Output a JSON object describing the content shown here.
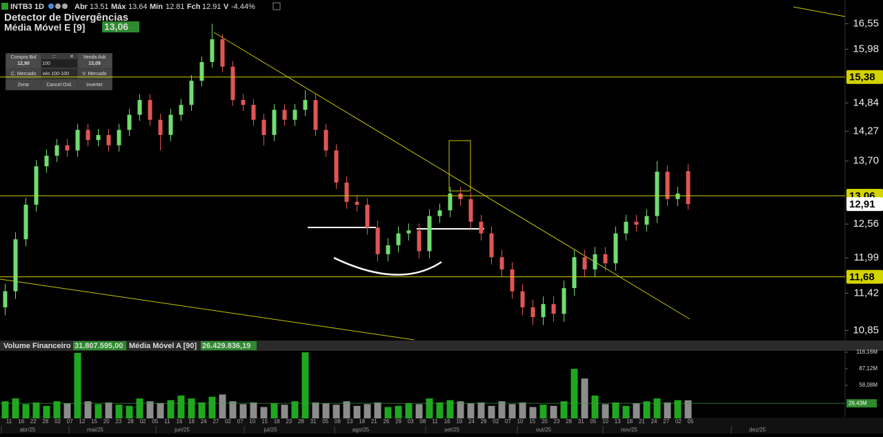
{
  "header": {
    "symbol": "INTB3 1D",
    "open_label": "Abr",
    "high_label": "Máx",
    "low_label": "Mín",
    "close_label": "Fch",
    "change_label": "V",
    "change": "-4.44%",
    "indicator": "Detector de Divergências",
    "ma_name": "Média Móvel E [9]",
    "ma_value": "13,06"
  },
  "order_panel": {
    "bid_label": "Compra Bid",
    "bid": "12,90",
    "quantity": "100",
    "handle": ":::",
    "ask_label": "Venda Ask",
    "ask": "13,09",
    "buy_market": "C. Mercado",
    "account": "win.100-100",
    "sell_market": "V. Mercado",
    "flatten": "Zerar",
    "cancel": "Cancel Ord.",
    "reverse": "Inverter"
  },
  "volume_header": {
    "name": "Volume Financeiro",
    "value": "31.807.595,00",
    "ma_name": "Média Móvel A [90]",
    "ma_value": "26.429.836,19"
  },
  "chart_data": [
    {
      "type": "candlestick",
      "log_scale": true,
      "up_color": "#6fdc6f",
      "down_color": "#e05555",
      "line_color": "#d4d400",
      "open": [
        11.2,
        11.45,
        12.3,
        12.9,
        13.6,
        13.8,
        14.0,
        13.9,
        14.3,
        14.1,
        14.2,
        14.0,
        14.3,
        14.6,
        14.9,
        14.5,
        14.2,
        14.6,
        14.8,
        15.3,
        15.7,
        16.2,
        15.6,
        14.9,
        14.8,
        14.5,
        14.2,
        14.7,
        14.5,
        14.7,
        14.9,
        14.3,
        13.9,
        13.3,
        12.95,
        12.9,
        12.5,
        12.05,
        12.2,
        12.4,
        12.45,
        12.1,
        12.7,
        12.8,
        13.1,
        13.0,
        12.6,
        12.4,
        12.0,
        11.8,
        11.45,
        11.2,
        11.05,
        11.25,
        11.1,
        11.5,
        12.0,
        11.8,
        12.05,
        11.9,
        12.4,
        12.6,
        12.55,
        12.7,
        13.5,
        13.0,
        13.51
      ],
      "high": [
        11.57,
        12.42,
        13.02,
        13.72,
        13.92,
        14.12,
        14.12,
        14.42,
        14.42,
        14.32,
        14.32,
        14.42,
        14.72,
        15.02,
        15.02,
        14.62,
        14.72,
        14.92,
        15.42,
        15.82,
        16.55,
        16.32,
        15.72,
        15.02,
        14.92,
        14.62,
        14.82,
        14.82,
        14.82,
        15.1,
        15.02,
        14.42,
        14.02,
        13.42,
        13.07,
        13.02,
        12.62,
        12.32,
        12.52,
        12.57,
        12.57,
        12.82,
        12.92,
        13.22,
        13.22,
        13.12,
        12.72,
        12.52,
        12.12,
        11.92,
        11.57,
        11.32,
        11.37,
        11.37,
        11.62,
        12.12,
        12.12,
        12.17,
        12.17,
        12.52,
        12.72,
        12.72,
        12.82,
        13.7,
        13.62,
        13.22,
        13.64
      ],
      "low": [
        11.08,
        11.33,
        12.18,
        12.78,
        13.48,
        13.68,
        13.78,
        13.78,
        13.98,
        13.98,
        13.88,
        13.88,
        14.18,
        14.48,
        14.38,
        13.9,
        14.08,
        14.48,
        14.68,
        15.18,
        15.58,
        15.48,
        14.78,
        14.68,
        14.38,
        14.0,
        14.08,
        14.38,
        14.38,
        14.58,
        14.18,
        13.78,
        13.18,
        12.83,
        12.78,
        12.38,
        11.93,
        11.93,
        12.08,
        12.28,
        11.98,
        11.98,
        12.58,
        12.68,
        12.88,
        12.48,
        12.28,
        11.88,
        11.68,
        11.33,
        11.08,
        10.93,
        10.93,
        10.98,
        10.98,
        11.38,
        11.68,
        11.68,
        11.78,
        11.78,
        12.28,
        12.43,
        12.43,
        12.58,
        12.88,
        12.88,
        12.81
      ],
      "close": [
        11.45,
        12.3,
        12.9,
        13.6,
        13.8,
        14.0,
        13.9,
        14.3,
        14.1,
        14.2,
        14.0,
        14.3,
        14.6,
        14.9,
        14.5,
        14.2,
        14.6,
        14.8,
        15.3,
        15.7,
        16.2,
        15.6,
        14.9,
        14.8,
        14.5,
        14.2,
        14.7,
        14.5,
        14.7,
        14.9,
        14.3,
        13.9,
        13.3,
        12.95,
        12.9,
        12.5,
        12.05,
        12.2,
        12.4,
        12.45,
        12.1,
        12.7,
        12.8,
        13.1,
        13.0,
        12.6,
        12.4,
        12.0,
        11.8,
        11.45,
        11.2,
        11.05,
        11.25,
        11.1,
        11.5,
        12.0,
        11.8,
        12.05,
        11.9,
        12.4,
        12.6,
        12.55,
        12.7,
        13.5,
        13.0,
        13.1,
        12.91
      ],
      "ylim": [
        10.71,
        17.1
      ],
      "yticks": [
        {
          "value": 16.55,
          "label": "16,55"
        },
        {
          "value": 15.98,
          "label": "15,98"
        },
        {
          "value": 14.84,
          "label": "14,84"
        },
        {
          "value": 14.27,
          "label": "14,27"
        },
        {
          "value": 13.7,
          "label": "13,70"
        },
        {
          "value": 12.56,
          "label": "12,56"
        },
        {
          "value": 11.99,
          "label": "11,99"
        },
        {
          "value": 11.42,
          "label": "11,42"
        },
        {
          "value": 10.85,
          "label": "10,85"
        }
      ],
      "hlines": [
        {
          "value": 15.38,
          "label": "15,38"
        },
        {
          "value": 13.06,
          "label": "13,06"
        },
        {
          "value": 11.68,
          "label": "11,68"
        }
      ],
      "last_price": {
        "value": 12.91,
        "label": "12,91"
      }
    },
    {
      "type": "bar",
      "up_color": "#1fa81f",
      "down_color": "#8c8c8c",
      "values": [
        30,
        35,
        25,
        28,
        22,
        30,
        26,
        115,
        30,
        25,
        28,
        24,
        22,
        35,
        30,
        27,
        32,
        40,
        35,
        28,
        38,
        42,
        30,
        25,
        28,
        20,
        26,
        24,
        30,
        116,
        28,
        26,
        24,
        30,
        22,
        25,
        28,
        20,
        22,
        26,
        25,
        35,
        28,
        32,
        30,
        26,
        28,
        22,
        30,
        25,
        28,
        20,
        24,
        22,
        30,
        87,
        70,
        40,
        25,
        28,
        22,
        26,
        30,
        35,
        28,
        32,
        31.81
      ],
      "ylim": [
        0,
        135.5
      ],
      "yticks": [
        {
          "value": 116.16,
          "label": "116,16M"
        },
        {
          "value": 87.12,
          "label": "87,12M"
        },
        {
          "value": 58.08,
          "label": "58,08M"
        }
      ],
      "ma_label": {
        "value": 26.43,
        "label": "26,43M"
      }
    }
  ],
  "x_axis": {
    "days": [
      "11",
      "16",
      "22",
      "28",
      "02",
      "07",
      "12",
      "15",
      "20",
      "23",
      "28",
      "02",
      "05",
      "11",
      "16",
      "18",
      "24",
      "27",
      "02",
      "07",
      "10",
      "15",
      "18",
      "23",
      "28",
      "31",
      "05",
      "08",
      "13",
      "18",
      "21",
      "26",
      "29",
      "03",
      "08",
      "11",
      "16",
      "19",
      "24",
      "29",
      "02",
      "07",
      "10",
      "15",
      "20",
      "23",
      "28",
      "31",
      "05",
      "10",
      "13",
      "18",
      "21",
      "24",
      "27",
      "02",
      "05"
    ],
    "months": [
      "abr/25",
      "mai/25",
      "jun/25",
      "jul/25",
      "ago/25",
      "set/25",
      "out/25",
      "nov/25",
      "dez/25"
    ]
  }
}
